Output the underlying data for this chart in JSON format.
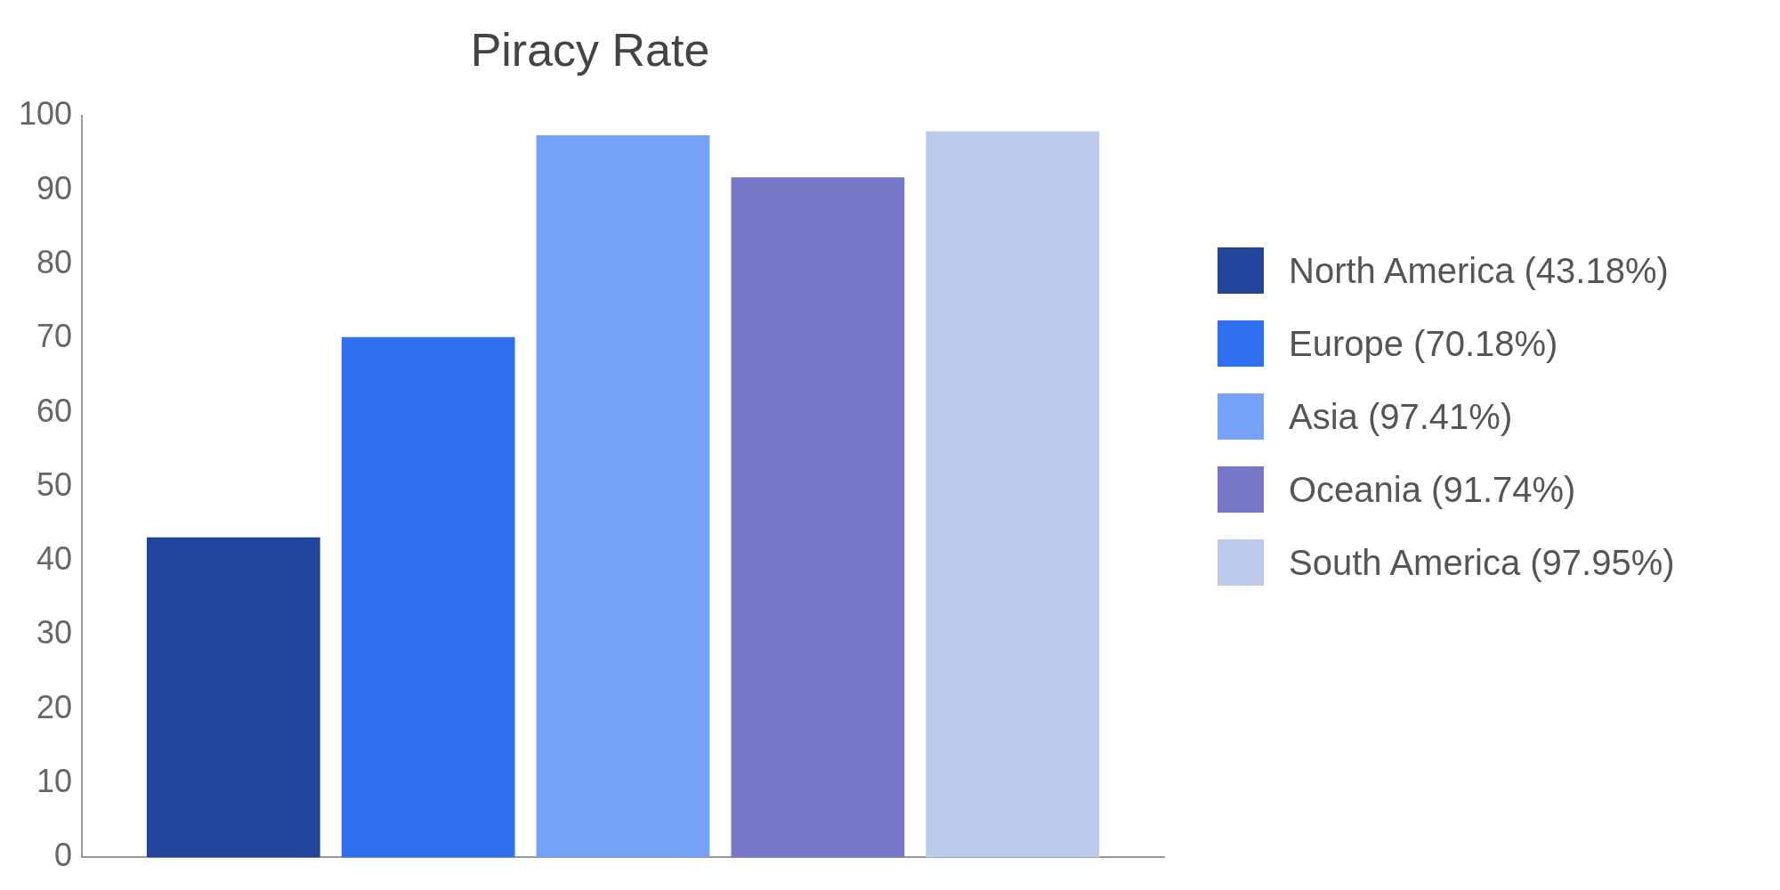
{
  "chart_data": {
    "type": "bar",
    "title": "Piracy Rate",
    "categories": [
      null
    ],
    "series": [
      {
        "name": "North America (43.18%)",
        "color": "#22449a",
        "values": [
          43.18
        ]
      },
      {
        "name": "Europe (70.18%)",
        "color": "#2f6ff2",
        "values": [
          70.18
        ]
      },
      {
        "name": "Asia (97.41%)",
        "color": "#76a1f8",
        "values": [
          97.41
        ]
      },
      {
        "name": "Oceania (91.74%)",
        "color": "#7676c8",
        "values": [
          91.74
        ]
      },
      {
        "name": "South America (97.95%)",
        "color": "#bccaeb",
        "values": [
          97.95
        ]
      }
    ],
    "ylim": [
      0,
      100
    ],
    "yticks": [
      0,
      10,
      20,
      30,
      40,
      50,
      60,
      70,
      80,
      90,
      100
    ],
    "grid": false,
    "legend": "right"
  }
}
